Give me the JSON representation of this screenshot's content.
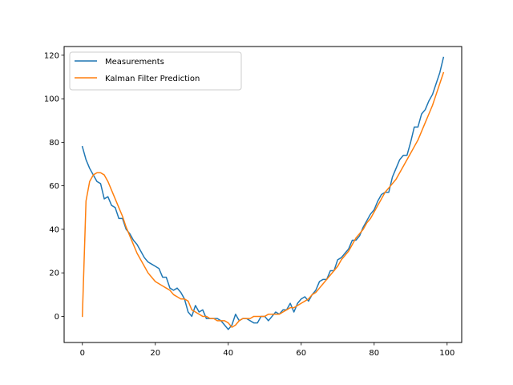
{
  "chart_data": {
    "type": "line",
    "title": "",
    "xlabel": "",
    "ylabel": "",
    "xlim": [
      -5,
      104
    ],
    "ylim": [
      -12,
      124
    ],
    "xticks": [
      0,
      20,
      40,
      60,
      80,
      100
    ],
    "yticks": [
      0,
      20,
      40,
      60,
      80,
      100,
      120
    ],
    "grid": false,
    "legend_position": "top-left",
    "series": [
      {
        "name": "Measurements",
        "color": "#1f77b4",
        "x": [
          0,
          1,
          2,
          3,
          4,
          5,
          6,
          7,
          8,
          9,
          10,
          11,
          12,
          13,
          14,
          15,
          16,
          17,
          18,
          19,
          20,
          21,
          22,
          23,
          24,
          25,
          26,
          27,
          28,
          29,
          30,
          31,
          32,
          33,
          34,
          35,
          36,
          37,
          38,
          39,
          40,
          41,
          42,
          43,
          44,
          45,
          46,
          47,
          48,
          49,
          50,
          51,
          52,
          53,
          54,
          55,
          56,
          57,
          58,
          59,
          60,
          61,
          62,
          63,
          64,
          65,
          66,
          67,
          68,
          69,
          70,
          71,
          72,
          73,
          74,
          75,
          76,
          77,
          78,
          79,
          80,
          81,
          82,
          83,
          84,
          85,
          86,
          87,
          88,
          89,
          90,
          91,
          92,
          93,
          94,
          95,
          96,
          97,
          98,
          99
        ],
        "y": [
          78,
          72,
          68,
          65,
          62,
          61,
          54,
          55,
          51,
          50,
          45,
          45,
          40,
          38,
          35,
          33,
          30,
          27,
          25,
          24,
          23,
          22,
          18,
          18,
          13,
          12,
          13,
          11,
          8,
          2,
          0,
          5,
          2,
          3,
          -1,
          -1,
          -1,
          -1,
          -2,
          -4,
          -6,
          -4,
          1,
          -2,
          -1,
          -1,
          -2,
          -3,
          -3,
          0,
          0,
          -2,
          0,
          2,
          1,
          3,
          3,
          6,
          2,
          6,
          8,
          9,
          7,
          10,
          12,
          16,
          17,
          17,
          21,
          21,
          26,
          27,
          29,
          31,
          35,
          35,
          37,
          41,
          44,
          47,
          49,
          53,
          56,
          57,
          57,
          64,
          68,
          72,
          74,
          74,
          80,
          87,
          87,
          93,
          95,
          99,
          102,
          107,
          112,
          119
        ]
      },
      {
        "name": "Kalman Filter Prediction",
        "color": "#ff7f0e",
        "x": [
          0,
          1,
          2,
          3,
          4,
          5,
          6,
          7,
          8,
          9,
          10,
          11,
          12,
          13,
          14,
          15,
          16,
          17,
          18,
          19,
          20,
          21,
          22,
          23,
          24,
          25,
          26,
          27,
          28,
          29,
          30,
          31,
          32,
          33,
          34,
          35,
          36,
          37,
          38,
          39,
          40,
          41,
          42,
          43,
          44,
          45,
          46,
          47,
          48,
          49,
          50,
          51,
          52,
          53,
          54,
          55,
          56,
          57,
          58,
          59,
          60,
          61,
          62,
          63,
          64,
          65,
          66,
          67,
          68,
          69,
          70,
          71,
          72,
          73,
          74,
          75,
          76,
          77,
          78,
          79,
          80,
          81,
          82,
          83,
          84,
          85,
          86,
          87,
          88,
          89,
          90,
          91,
          92,
          93,
          94,
          95,
          96,
          97,
          98,
          99
        ],
        "y": [
          0,
          53,
          62,
          65,
          66,
          66,
          65,
          62,
          58,
          54,
          50,
          46,
          41,
          37,
          33,
          29,
          26,
          23,
          20,
          18,
          16,
          15,
          14,
          13,
          12,
          10,
          9,
          8,
          8,
          7,
          3,
          2,
          1,
          0,
          0,
          -1,
          -1,
          -2,
          -2,
          -2,
          -3,
          -5,
          -4,
          -2,
          -1,
          -1,
          -1,
          0,
          0,
          0,
          0,
          1,
          1,
          1,
          1,
          2,
          3,
          4,
          4,
          5,
          6,
          7,
          8,
          10,
          11,
          13,
          15,
          17,
          19,
          21,
          23,
          26,
          28,
          30,
          33,
          36,
          38,
          40,
          43,
          45,
          48,
          51,
          54,
          57,
          59,
          61,
          63,
          66,
          69,
          72,
          75,
          78,
          81,
          85,
          89,
          93,
          97,
          102,
          107,
          112
        ]
      }
    ]
  }
}
